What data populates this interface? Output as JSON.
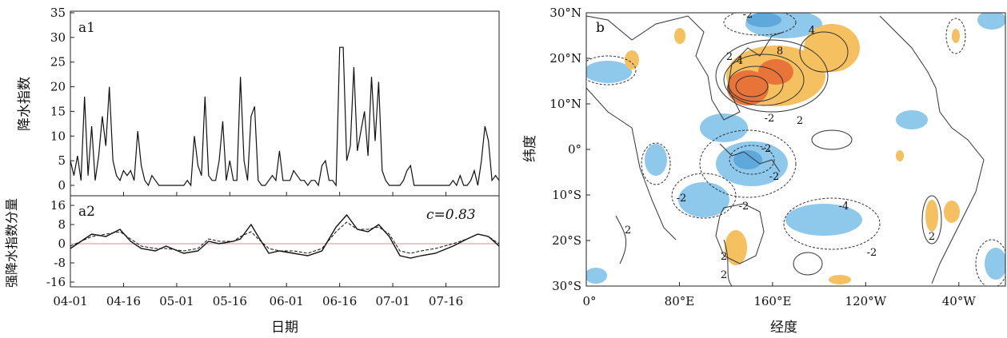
{
  "chart_data": [
    {
      "type": "line",
      "panel_label": "a1",
      "ylabel": "降水指数",
      "xlabel": "",
      "ylim": [
        0,
        35
      ],
      "yticks": [
        0,
        5,
        10,
        15,
        20,
        25,
        30,
        35
      ],
      "xlim": [
        "04-01",
        "07-31"
      ],
      "xticks": [
        "04-01",
        "04-16",
        "05-01",
        "05-16",
        "06-01",
        "06-16",
        "07-01",
        "07-16"
      ],
      "series": [
        {
          "style": "solid",
          "x": [
            0,
            1,
            2,
            3,
            4,
            5,
            6,
            7,
            8,
            9,
            10,
            11,
            12,
            13,
            14,
            15,
            16,
            17,
            18,
            19,
            20,
            21,
            22,
            23,
            24,
            25,
            26,
            27,
            28,
            29,
            30,
            31,
            32,
            33,
            34,
            35,
            36,
            37,
            38,
            39,
            40,
            41,
            42,
            43,
            44,
            45,
            46,
            47,
            48,
            49,
            50,
            51,
            52,
            53,
            54,
            55,
            56,
            57,
            58,
            59,
            60,
            61,
            62,
            63,
            64,
            65,
            66,
            67,
            68,
            69,
            70,
            71,
            72,
            73,
            74,
            75,
            76,
            77,
            78,
            79,
            80,
            81,
            82,
            83,
            84,
            85,
            86,
            87,
            88,
            89,
            90,
            91,
            92,
            93,
            94,
            95,
            96,
            97,
            98,
            99,
            100,
            101,
            102,
            103,
            104,
            105,
            106,
            107,
            108,
            109,
            110,
            111,
            112,
            113,
            114,
            115,
            116,
            117,
            118,
            119,
            120,
            121
          ],
          "y": [
            5,
            2,
            6,
            1,
            18,
            2,
            12,
            1,
            6,
            14,
            8,
            20,
            5,
            2,
            1,
            3,
            2,
            3,
            1,
            11,
            4,
            1,
            0,
            2,
            1,
            0,
            0,
            0,
            0,
            0,
            0,
            0,
            0,
            1,
            0,
            10,
            4,
            2,
            18,
            2,
            1,
            1,
            5,
            13,
            1,
            5,
            1,
            1,
            22,
            5,
            1,
            14,
            16,
            1,
            0,
            0,
            1,
            2,
            1,
            7,
            1,
            1,
            1,
            3,
            2,
            1,
            1,
            0,
            1,
            1,
            0,
            4,
            5,
            1,
            1,
            0,
            28,
            28,
            5,
            8,
            24,
            7,
            11,
            15,
            6,
            22,
            9,
            21,
            3,
            1,
            0,
            0,
            0,
            0,
            1,
            3,
            4,
            0,
            0,
            0,
            0,
            0,
            0,
            0,
            0,
            0,
            0,
            0,
            1,
            0,
            2,
            0,
            0,
            1,
            3,
            0,
            5,
            12,
            9,
            1,
            2,
            1
          ]
        }
      ]
    },
    {
      "type": "line",
      "panel_label": "a2",
      "ylabel": "强降水指数分量",
      "xlabel": "日期",
      "ylim": [
        -16,
        16
      ],
      "yticks": [
        -16,
        -8,
        0,
        8,
        16
      ],
      "annotation": "c=0.83",
      "xticks": [
        "04-01",
        "04-16",
        "05-01",
        "05-16",
        "06-01",
        "06-16",
        "07-01",
        "07-16"
      ],
      "series": [
        {
          "style": "solid",
          "x": [
            0,
            3,
            6,
            10,
            14,
            17,
            20,
            24,
            27,
            32,
            36,
            39,
            42,
            46,
            48,
            51,
            53,
            56,
            59,
            63,
            67,
            71,
            75,
            78,
            81,
            84,
            87,
            90,
            93,
            96,
            99,
            103,
            108,
            112,
            115,
            118,
            121
          ],
          "y": [
            -2,
            1,
            4,
            3,
            6,
            1,
            -2,
            -3,
            -1,
            -4,
            -3,
            1,
            0,
            1,
            2,
            8,
            3,
            -4,
            -3,
            -4,
            -5,
            -3,
            7,
            12,
            6,
            5,
            8,
            3,
            -5,
            -6,
            -5,
            -4,
            -1,
            2,
            4,
            3,
            -1
          ]
        },
        {
          "style": "dashed",
          "x": [
            0,
            3,
            6,
            10,
            14,
            17,
            20,
            24,
            27,
            32,
            36,
            39,
            42,
            46,
            48,
            51,
            53,
            56,
            59,
            63,
            67,
            71,
            75,
            78,
            81,
            84,
            87,
            90,
            93,
            96,
            99,
            103,
            108,
            112,
            115,
            118,
            121
          ],
          "y": [
            -1,
            1,
            3,
            4,
            5,
            2,
            -1,
            -2,
            -2,
            -3,
            -2,
            2,
            1,
            1,
            3,
            5,
            2,
            -2,
            -3,
            -3,
            -4,
            -2,
            5,
            9,
            6,
            6,
            7,
            4,
            -3,
            -4,
            -3,
            -2,
            0,
            2,
            4,
            3,
            0
          ]
        }
      ]
    },
    {
      "type": "heatmap",
      "panel_label": "b",
      "xlabel": "经度",
      "ylabel": "纬度",
      "xticks": [
        "0°",
        "80°E",
        "160°E",
        "120°W",
        "40°W"
      ],
      "yticks": [
        "30°N",
        "20°N",
        "10°N",
        "0°",
        "10°S",
        "20°S",
        "30°S"
      ],
      "contour_labels": [
        "-2",
        "4",
        "2",
        "8",
        "4",
        "2",
        "-2",
        "-2",
        "-2",
        "-2",
        "-2",
        "-4",
        "-2",
        "2",
        "2",
        "2",
        "2"
      ],
      "colors": {
        "positive": "#f5b54a",
        "positive_strong": "#e8743a",
        "negative": "#8ec8ea",
        "negative_strong": "#5fa8dc"
      }
    }
  ]
}
